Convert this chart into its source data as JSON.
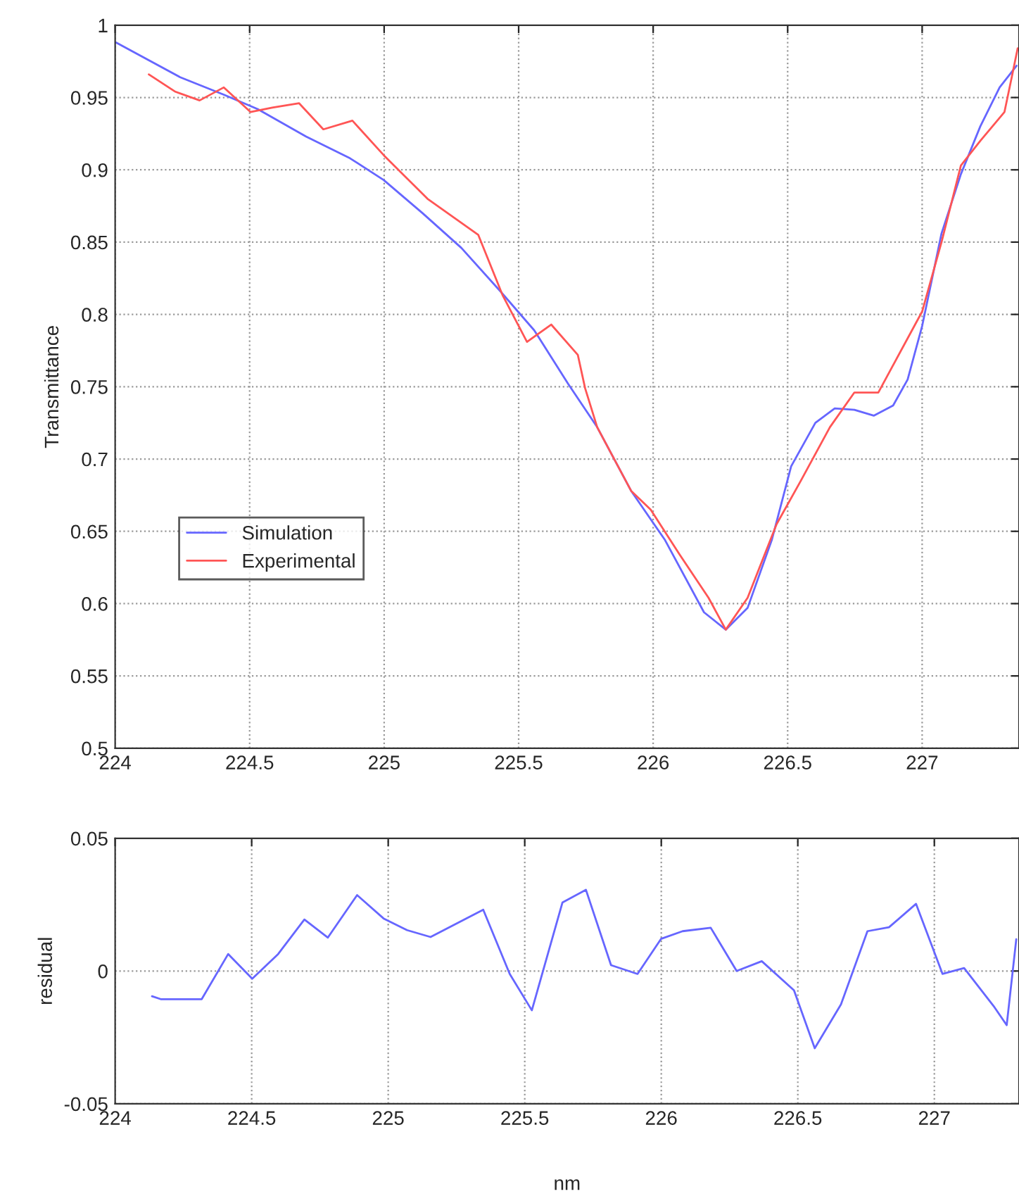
{
  "chart_data": [
    {
      "type": "line",
      "ylabel": "Transmittance",
      "xlim": [
        224,
        227.36
      ],
      "xticks": [
        224,
        224.5,
        225,
        225.5,
        226,
        226.5,
        227
      ],
      "ylim": [
        0.5,
        1
      ],
      "yticks": [
        0.5,
        0.55,
        0.6,
        0.65,
        0.7,
        0.75,
        0.8,
        0.85,
        0.9,
        0.95,
        1
      ],
      "grid": true,
      "legend": "lower left",
      "series": [
        {
          "name": "Simulation",
          "color": "#6666ff",
          "x": [
            224.004,
            224.242,
            224.404,
            224.53,
            224.71,
            224.873,
            224.998,
            225.143,
            225.287,
            225.432,
            225.558,
            225.684,
            225.792,
            225.918,
            226.044,
            226.189,
            226.27,
            226.351,
            226.441,
            226.513,
            226.603,
            226.675,
            226.748,
            226.82,
            226.892,
            226.946,
            227.0,
            227.072,
            227.144,
            227.216,
            227.288,
            227.351
          ],
          "values": [
            0.988,
            0.964,
            0.952,
            0.942,
            0.923,
            0.908,
            0.893,
            0.87,
            0.846,
            0.816,
            0.789,
            0.752,
            0.722,
            0.678,
            0.644,
            0.594,
            0.582,
            0.597,
            0.644,
            0.695,
            0.725,
            0.735,
            0.734,
            0.73,
            0.737,
            0.755,
            0.792,
            0.856,
            0.897,
            0.93,
            0.957,
            0.972
          ]
        },
        {
          "name": "Experimental",
          "color": "#ff5555",
          "x": [
            224.125,
            224.224,
            224.314,
            224.404,
            224.503,
            224.584,
            224.684,
            224.774,
            224.882,
            224.999,
            225.161,
            225.35,
            225.441,
            225.531,
            225.621,
            225.72,
            225.747,
            225.792,
            225.918,
            225.991,
            226.098,
            226.206,
            226.27,
            226.351,
            226.459,
            226.549,
            226.657,
            226.748,
            226.837,
            227.0,
            227.072,
            227.144,
            227.216,
            227.306,
            227.333,
            227.355
          ],
          "values": [
            0.966,
            0.954,
            0.948,
            0.957,
            0.94,
            0.943,
            0.946,
            0.928,
            0.934,
            0.91,
            0.88,
            0.855,
            0.813,
            0.781,
            0.793,
            0.772,
            0.749,
            0.722,
            0.678,
            0.665,
            0.634,
            0.604,
            0.582,
            0.604,
            0.655,
            0.685,
            0.722,
            0.746,
            0.746,
            0.802,
            0.85,
            0.903,
            0.92,
            0.94,
            0.964,
            0.984
          ]
        }
      ]
    },
    {
      "type": "line",
      "xlabel": "nm",
      "ylabel": "residual",
      "xlim": [
        224,
        227.31
      ],
      "xticks": [
        224,
        224.5,
        225,
        225.5,
        226,
        226.5,
        227
      ],
      "ylim": [
        -0.05,
        0.05
      ],
      "yticks": [
        -0.05,
        0,
        0.05
      ],
      "grid": true,
      "series": [
        {
          "color": "#6666ff",
          "x": [
            224.135,
            224.167,
            224.317,
            224.414,
            224.502,
            224.597,
            224.693,
            224.779,
            224.886,
            224.983,
            225.069,
            225.155,
            225.348,
            225.445,
            225.526,
            225.638,
            225.724,
            225.816,
            225.913,
            225.999,
            226.078,
            226.181,
            226.276,
            226.368,
            226.486,
            226.562,
            226.658,
            226.755,
            226.834,
            226.933,
            227.03,
            227.109,
            227.217,
            227.265,
            227.3
          ],
          "values": [
            -0.0095,
            -0.0106,
            -0.0106,
            0.0064,
            -0.0029,
            0.0064,
            0.0194,
            0.0126,
            0.0286,
            0.0198,
            0.0154,
            0.0128,
            0.0231,
            -0.0011,
            -0.0148,
            0.0258,
            0.0306,
            0.0022,
            -0.0011,
            0.0121,
            0.015,
            0.0163,
            0.0,
            0.0037,
            -0.0073,
            -0.0291,
            -0.0126,
            0.015,
            0.0165,
            0.0253,
            -0.0011,
            0.0011,
            -0.0132,
            -0.0204,
            0.012
          ]
        }
      ]
    }
  ]
}
